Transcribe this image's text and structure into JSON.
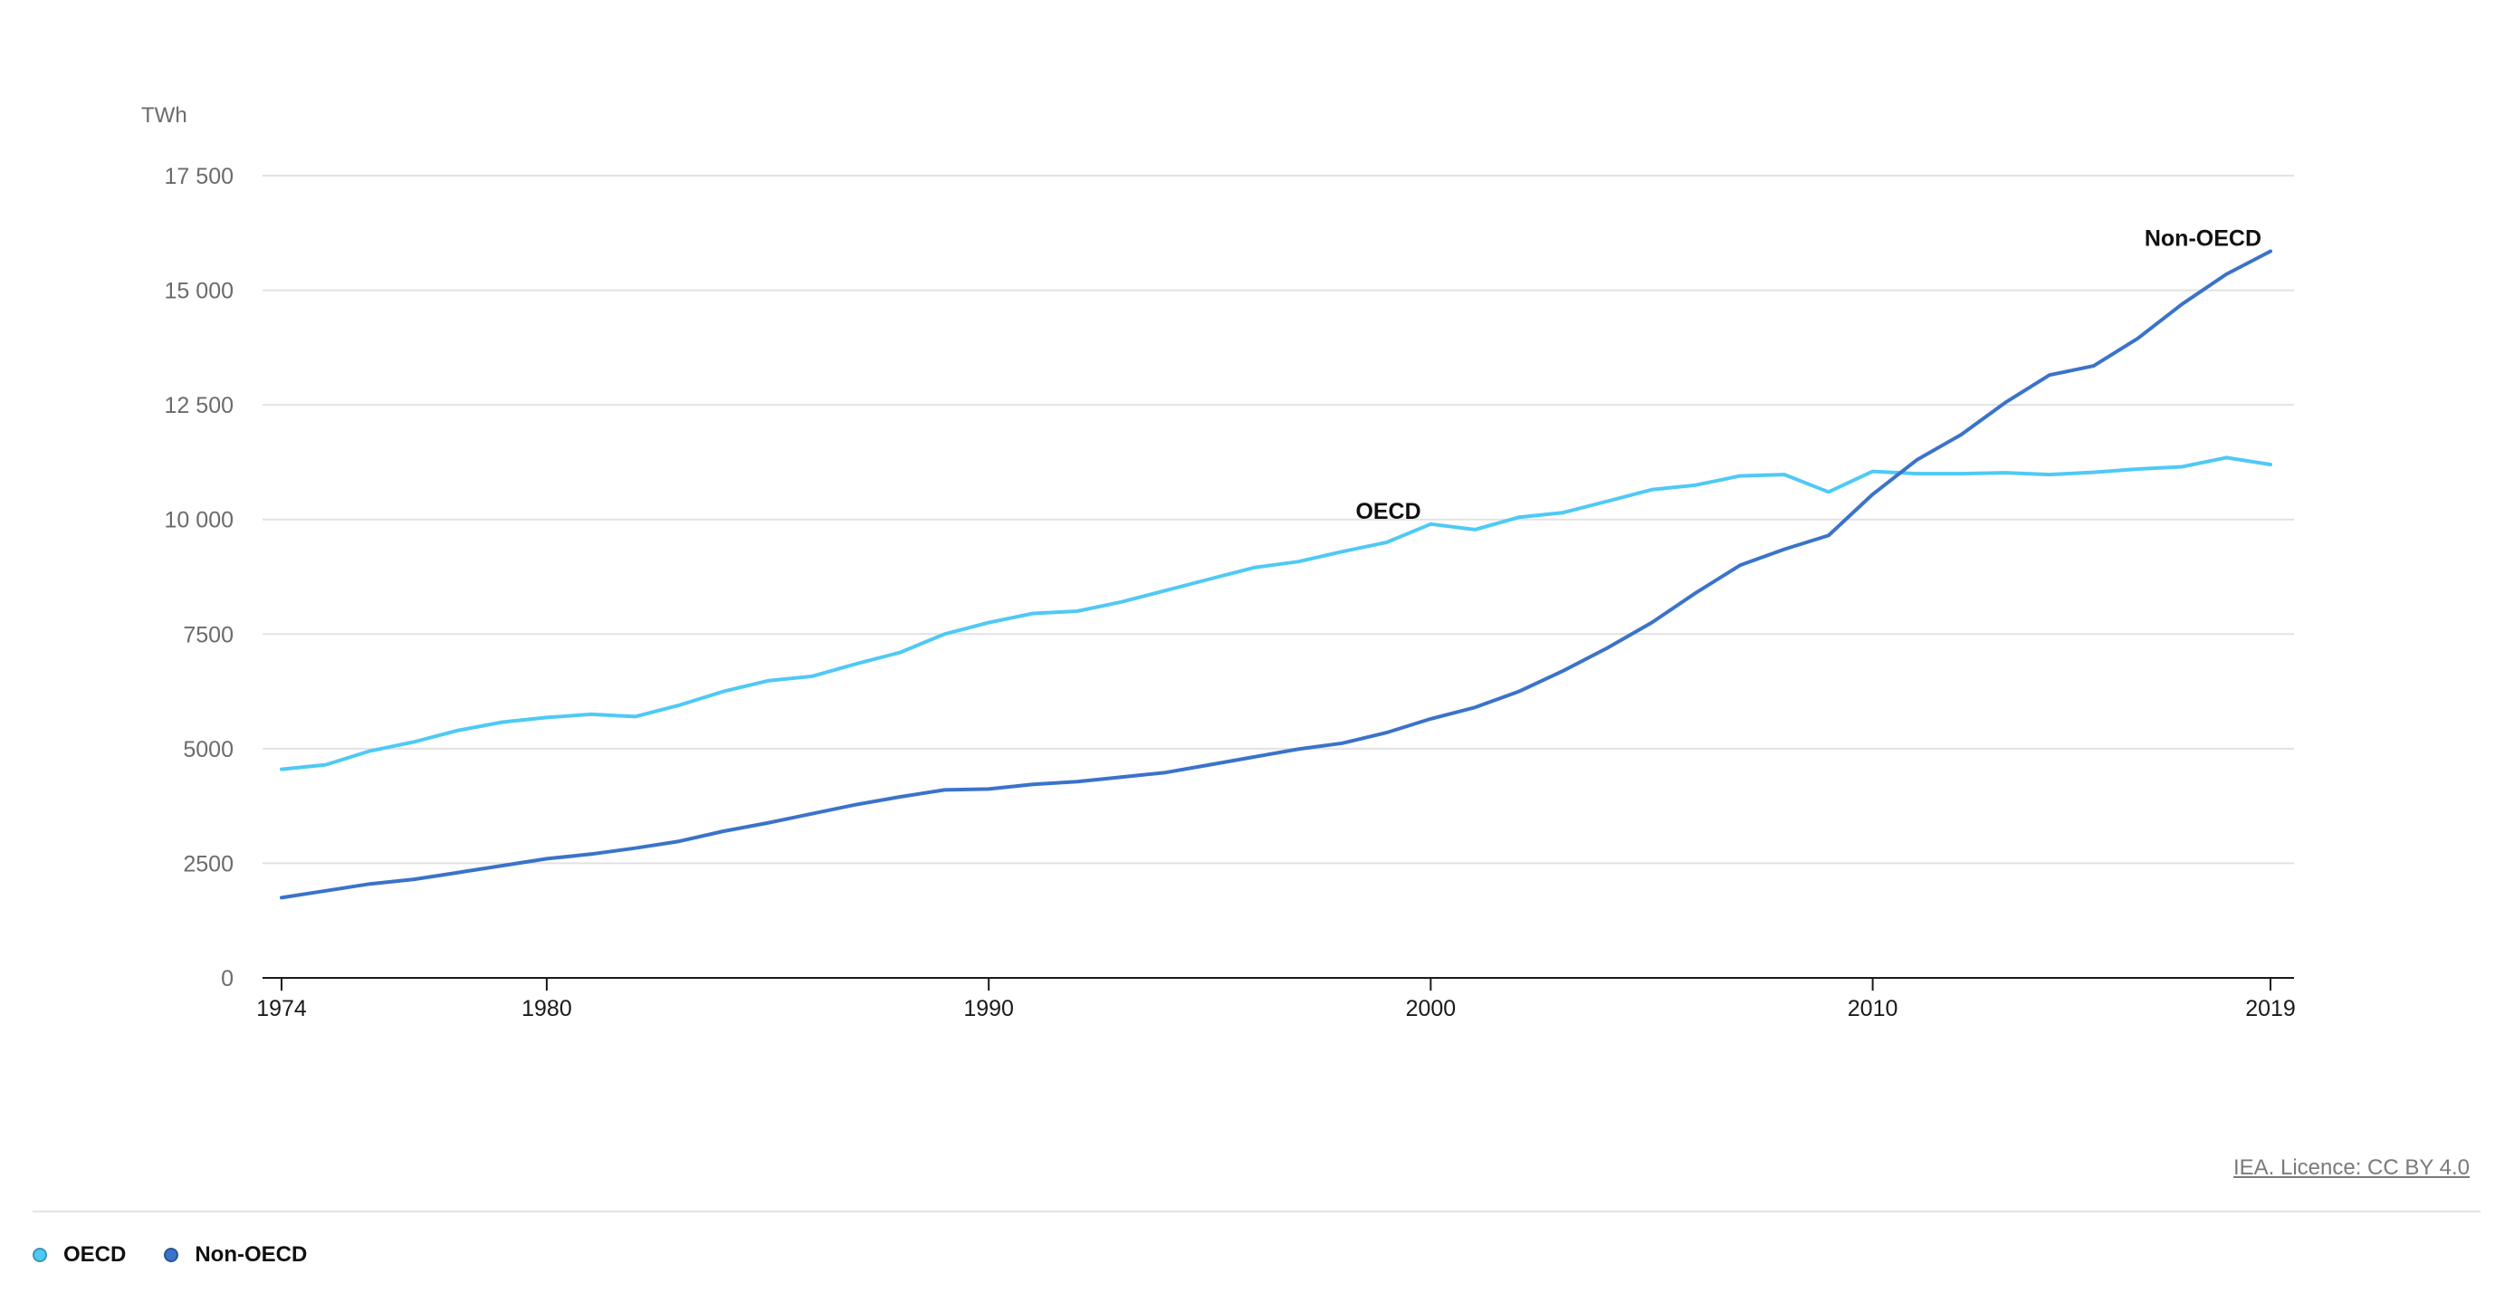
{
  "unit_label": "TWh",
  "credit": "IEA. Licence: CC BY 4.0",
  "legend": [
    {
      "label": "OECD",
      "color": "#4fc9f5"
    },
    {
      "label": "Non-OECD",
      "color": "#3a73c9"
    }
  ],
  "chart_data": {
    "type": "line",
    "title": "",
    "xlabel": "",
    "ylabel": "TWh",
    "xlim": [
      1974,
      2019
    ],
    "ylim": [
      0,
      17500
    ],
    "y_ticks": [
      0,
      2500,
      5000,
      7500,
      10000,
      12500,
      15000,
      17500
    ],
    "y_tick_labels": [
      "0",
      "2500",
      "5000",
      "7500",
      "10 000",
      "12 500",
      "15 000",
      "17 500"
    ],
    "x_ticks": [
      1974,
      1980,
      1990,
      2000,
      2010,
      2019
    ],
    "x_tick_labels": [
      "1974",
      "1980",
      "1990",
      "2000",
      "2010",
      "2019"
    ],
    "grid": true,
    "legend_position": "bottom-left",
    "x": [
      1974,
      1975,
      1976,
      1977,
      1978,
      1979,
      1980,
      1981,
      1982,
      1983,
      1984,
      1985,
      1986,
      1987,
      1988,
      1989,
      1990,
      1991,
      1992,
      1993,
      1994,
      1995,
      1996,
      1997,
      1998,
      1999,
      2000,
      2001,
      2002,
      2003,
      2004,
      2005,
      2006,
      2007,
      2008,
      2009,
      2010,
      2011,
      2012,
      2013,
      2014,
      2015,
      2016,
      2017,
      2018,
      2019
    ],
    "series": [
      {
        "name": "OECD",
        "color": "#4fc9f5",
        "values": [
          4550,
          4650,
          4950,
          5150,
          5400,
          5580,
          5680,
          5750,
          5700,
          5950,
          6250,
          6480,
          6580,
          6850,
          7100,
          7500,
          7750,
          7950,
          8000,
          8200,
          8450,
          8700,
          8950,
          9080,
          9300,
          9500,
          9900,
          9780,
          10050,
          10150,
          10400,
          10650,
          10750,
          10950,
          10980,
          10600,
          11050,
          11000,
          11000,
          11020,
          10980,
          11030,
          11100,
          11150,
          11350,
          11200
        ],
        "annotation": "OECD"
      },
      {
        "name": "Non-OECD",
        "color": "#3a73c9",
        "values": [
          1750,
          1900,
          2050,
          2150,
          2300,
          2450,
          2600,
          2700,
          2830,
          2980,
          3200,
          3380,
          3580,
          3780,
          3950,
          4100,
          4120,
          4220,
          4280,
          4380,
          4480,
          4650,
          4820,
          4990,
          5120,
          5350,
          5650,
          5900,
          6250,
          6700,
          7200,
          7750,
          8400,
          9000,
          9350,
          9650,
          10550,
          11300,
          11850,
          12550,
          13150,
          13350,
          13950,
          14700,
          15350,
          15850
        ],
        "annotation": "Non-OECD"
      }
    ]
  }
}
